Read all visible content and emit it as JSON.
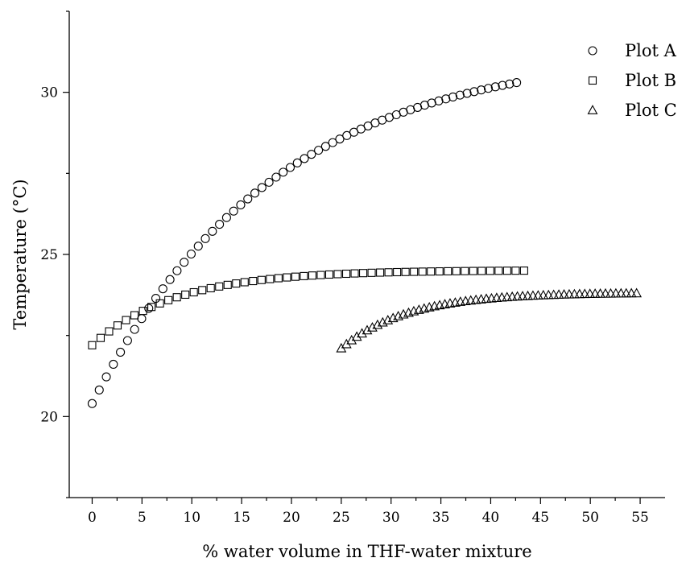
{
  "chart_data": {
    "type": "scatter",
    "xlabel": "% water volume in THF-water mixture",
    "ylabel": "Temperature (°C)",
    "xlim": [
      -2.3,
      57.5
    ],
    "ylim": [
      17.5,
      32.5
    ],
    "xticks": [
      0,
      5,
      10,
      15,
      20,
      25,
      30,
      35,
      40,
      45,
      50,
      55
    ],
    "yticks": [
      20,
      25,
      30
    ],
    "legend_position": "top-right",
    "grid": false,
    "series": [
      {
        "name": "Plot A",
        "marker": "circle",
        "x_start": 0,
        "x_end": 42.6,
        "x_step": 0.71,
        "curve": {
          "kind": "saturating",
          "y0": 20.4,
          "y_end": 30.3,
          "rate": 0.055
        }
      },
      {
        "name": "Plot B",
        "marker": "square",
        "x_start": 0,
        "x_end": 43.5,
        "x_step": 0.85,
        "curve": {
          "kind": "saturating",
          "y0": 22.2,
          "y_end": 24.5,
          "rate": 0.12
        }
      },
      {
        "name": "Plot C",
        "marker": "triangle",
        "x_start": 25,
        "x_end": 54.8,
        "x_step": 0.52,
        "curve": {
          "kind": "saturating",
          "y0": 22.1,
          "y_end": 23.8,
          "rate": 0.15
        }
      }
    ]
  }
}
